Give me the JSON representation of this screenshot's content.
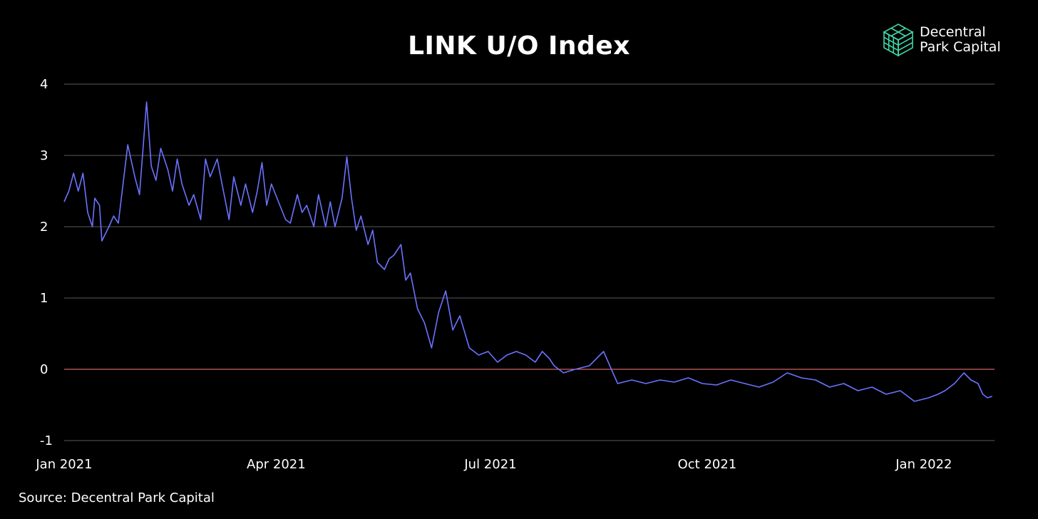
{
  "brand": {
    "line1": "Decentral",
    "line2": "Park Capital",
    "logo_icon": "cube-logo-icon",
    "logo_color": "#3fd9a8"
  },
  "source_text": "Source: Decentral Park Capital",
  "colors": {
    "background": "#000000",
    "line": "#6b72ff",
    "zero_line": "#ff7b7b",
    "grid": "#5a5a5a",
    "text": "#ffffff"
  },
  "chart_data": {
    "type": "line",
    "title": "LINK U/O Index",
    "xlabel": "",
    "ylabel": "",
    "ylim": [
      -1,
      4
    ],
    "yticks": [
      4,
      3,
      2,
      1,
      0,
      -1
    ],
    "ytick_labels": [
      "4",
      "3",
      "2",
      "1",
      "0",
      "-1"
    ],
    "xlim": [
      "2021-01-01",
      "2022-01-31"
    ],
    "xticks": [
      "2021-01-01",
      "2021-04-01",
      "2021-07-01",
      "2021-10-01",
      "2022-01-01"
    ],
    "xtick_labels": [
      "Jan 2021",
      "Apr 2021",
      "Jul 2021",
      "Oct 2021",
      "Jan 2022"
    ],
    "grid": true,
    "reference_line": 0,
    "series": [
      {
        "x": [
          "2021-01-01",
          "2021-01-03",
          "2021-01-05",
          "2021-01-07",
          "2021-01-09",
          "2021-01-11",
          "2021-01-13",
          "2021-01-14",
          "2021-01-16",
          "2021-01-17",
          "2021-01-20",
          "2021-01-22",
          "2021-01-24",
          "2021-01-28",
          "2021-01-31",
          "2021-02-02",
          "2021-02-05",
          "2021-02-07",
          "2021-02-09",
          "2021-02-11",
          "2021-02-14",
          "2021-02-16",
          "2021-02-18",
          "2021-02-20",
          "2021-02-23",
          "2021-02-25",
          "2021-02-28",
          "2021-03-02",
          "2021-03-04",
          "2021-03-07",
          "2021-03-09",
          "2021-03-12",
          "2021-03-14",
          "2021-03-17",
          "2021-03-19",
          "2021-03-22",
          "2021-03-24",
          "2021-03-26",
          "2021-03-28",
          "2021-03-30",
          "2021-04-02",
          "2021-04-05",
          "2021-04-07",
          "2021-04-10",
          "2021-04-12",
          "2021-04-14",
          "2021-04-17",
          "2021-04-19",
          "2021-04-22",
          "2021-04-24",
          "2021-04-26",
          "2021-04-29",
          "2021-05-01",
          "2021-05-03",
          "2021-05-05",
          "2021-05-07",
          "2021-05-10",
          "2021-05-12",
          "2021-05-14",
          "2021-05-17",
          "2021-05-19",
          "2021-05-21",
          "2021-05-24",
          "2021-05-26",
          "2021-05-28",
          "2021-05-31",
          "2021-06-03",
          "2021-06-06",
          "2021-06-09",
          "2021-06-12",
          "2021-06-15",
          "2021-06-18",
          "2021-06-22",
          "2021-06-26",
          "2021-06-30",
          "2021-07-04",
          "2021-07-08",
          "2021-07-12",
          "2021-07-16",
          "2021-07-20",
          "2021-07-23",
          "2021-07-26",
          "2021-07-28",
          "2021-08-01",
          "2021-08-06",
          "2021-08-12",
          "2021-08-18",
          "2021-08-24",
          "2021-08-30",
          "2021-09-05",
          "2021-09-11",
          "2021-09-17",
          "2021-09-23",
          "2021-09-29",
          "2021-10-05",
          "2021-10-11",
          "2021-10-17",
          "2021-10-23",
          "2021-10-29",
          "2021-11-04",
          "2021-11-10",
          "2021-11-16",
          "2021-11-22",
          "2021-11-28",
          "2021-12-04",
          "2021-12-10",
          "2021-12-16",
          "2021-12-22",
          "2021-12-28",
          "2022-01-03",
          "2022-01-07",
          "2022-01-10",
          "2022-01-14",
          "2022-01-18",
          "2022-01-21",
          "2022-01-24",
          "2022-01-26",
          "2022-01-28",
          "2022-01-30"
        ],
        "y": [
          2.35,
          2.5,
          2.75,
          2.5,
          2.75,
          2.2,
          2.0,
          2.4,
          2.3,
          1.8,
          2.0,
          2.15,
          2.05,
          3.15,
          2.7,
          2.45,
          3.75,
          2.85,
          2.65,
          3.1,
          2.8,
          2.5,
          2.95,
          2.6,
          2.3,
          2.45,
          2.1,
          2.95,
          2.7,
          2.95,
          2.6,
          2.1,
          2.7,
          2.3,
          2.6,
          2.2,
          2.5,
          2.9,
          2.3,
          2.6,
          2.35,
          2.1,
          2.05,
          2.45,
          2.2,
          2.3,
          2.0,
          2.45,
          2.0,
          2.35,
          2.0,
          2.4,
          2.98,
          2.4,
          1.95,
          2.15,
          1.75,
          1.95,
          1.5,
          1.4,
          1.55,
          1.6,
          1.75,
          1.25,
          1.35,
          0.85,
          0.65,
          0.3,
          0.8,
          1.1,
          0.55,
          0.75,
          0.3,
          0.2,
          0.25,
          0.1,
          0.2,
          0.25,
          0.2,
          0.1,
          0.25,
          0.15,
          0.05,
          -0.05,
          0.0,
          0.05,
          0.25,
          -0.2,
          -0.15,
          -0.2,
          -0.15,
          -0.18,
          -0.12,
          -0.2,
          -0.22,
          -0.15,
          -0.2,
          -0.25,
          -0.18,
          -0.05,
          -0.12,
          -0.15,
          -0.25,
          -0.2,
          -0.3,
          -0.25,
          -0.35,
          -0.3,
          -0.45,
          -0.4,
          -0.35,
          -0.3,
          -0.2,
          -0.05,
          -0.15,
          -0.2,
          -0.35,
          -0.4,
          -0.38
        ]
      }
    ]
  }
}
